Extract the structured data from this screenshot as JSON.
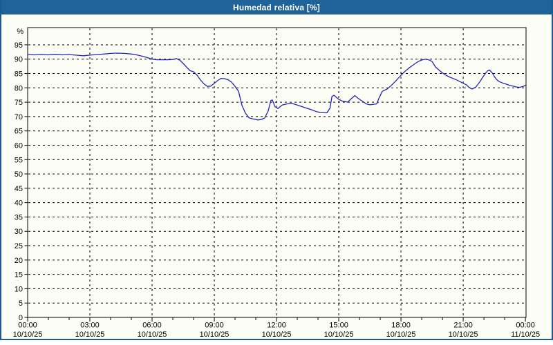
{
  "window": {
    "title": "Humedad relativa [%]"
  },
  "colors": {
    "titlebar_bg": "#1f6398",
    "frame_border": "#1a5c90",
    "panel_bg": "#fcfdf5",
    "plot_border": "#000000",
    "grid": "#000000",
    "series_line": "#2323b8",
    "title_text": "#ffffff",
    "axis_text": "#000000"
  },
  "chart_data": {
    "type": "line",
    "title": "Humedad relativa [%]",
    "ylabel": "%",
    "xlabel": "",
    "ylim": [
      0,
      101
    ],
    "xlim_hours": [
      0,
      24.03
    ],
    "grid": true,
    "legend_position": "none",
    "y_ticks": [
      0,
      5,
      10,
      15,
      20,
      25,
      30,
      35,
      40,
      45,
      50,
      55,
      60,
      65,
      70,
      75,
      80,
      85,
      90,
      95
    ],
    "x_ticks": [
      {
        "hour": 0,
        "time": "00:00",
        "date": "10/10/25"
      },
      {
        "hour": 3,
        "time": "03:00",
        "date": "10/10/25"
      },
      {
        "hour": 6,
        "time": "06:00",
        "date": "10/10/25"
      },
      {
        "hour": 9,
        "time": "09:00",
        "date": "10/10/25"
      },
      {
        "hour": 12,
        "time": "12:00",
        "date": "10/10/25"
      },
      {
        "hour": 15,
        "time": "15:00",
        "date": "10/10/25"
      },
      {
        "hour": 18,
        "time": "18:00",
        "date": "10/10/25"
      },
      {
        "hour": 21,
        "time": "21:00",
        "date": "10/10/25"
      },
      {
        "hour": 24,
        "time": "00:00",
        "date": "11/10/25"
      }
    ],
    "series": [
      {
        "name": "Humedad relativa [%]",
        "x_hours": [
          0,
          0.33,
          0.67,
          1,
          1.33,
          1.67,
          2,
          2.33,
          2.67,
          3,
          3.33,
          3.67,
          4,
          4.33,
          4.67,
          5,
          5.25,
          5.5,
          5.75,
          6,
          6.25,
          6.5,
          6.75,
          7,
          7.17,
          7.33,
          7.5,
          7.67,
          7.83,
          8,
          8.17,
          8.33,
          8.5,
          8.67,
          8.83,
          9,
          9.17,
          9.33,
          9.5,
          9.67,
          9.83,
          10,
          10.17,
          10.33,
          10.5,
          10.67,
          10.83,
          11,
          11.1,
          11.27,
          11.43,
          11.6,
          11.73,
          11.8,
          11.93,
          12.07,
          12.27,
          12.5,
          12.73,
          13,
          13.33,
          13.67,
          13.93,
          14.1,
          14.43,
          14.58,
          14.67,
          14.77,
          15,
          15.17,
          15.33,
          15.43,
          15.6,
          15.77,
          16,
          16.33,
          16.5,
          16.83,
          16.93,
          17.1,
          17.33,
          17.5,
          17.75,
          18,
          18.17,
          18.4,
          18.67,
          18.83,
          19,
          19.17,
          19.33,
          19.5,
          19.67,
          19.83,
          20,
          20.17,
          20.33,
          20.67,
          21,
          21.17,
          21.27,
          21.43,
          21.6,
          21.73,
          21.83,
          21.93,
          22.07,
          22.17,
          22.27,
          22.4,
          22.5,
          22.6,
          22.73,
          22.9,
          23.07,
          23.23,
          23.4,
          23.57,
          23.73,
          23.9,
          24
        ],
        "values": [
          91.6,
          91.5,
          91.6,
          91.5,
          91.7,
          91.5,
          91.6,
          91.4,
          91.2,
          91.4,
          91.6,
          91.8,
          92.0,
          92.1,
          92.0,
          91.8,
          91.5,
          91.1,
          90.6,
          90.0,
          89.8,
          89.8,
          89.8,
          89.9,
          90.2,
          89.7,
          88.5,
          87.2,
          86.0,
          85.6,
          84.4,
          82.8,
          81.4,
          80.5,
          80.6,
          81.6,
          82.6,
          83.3,
          83.2,
          82.8,
          82.0,
          80.5,
          78.8,
          74.0,
          71.2,
          69.6,
          69.2,
          69.0,
          68.8,
          69.0,
          69.5,
          72.0,
          75.6,
          75.8,
          73.4,
          72.8,
          74.0,
          74.4,
          74.6,
          74.0,
          73.2,
          72.4,
          71.7,
          71.4,
          71.3,
          73.0,
          77.0,
          77.4,
          76.0,
          75.4,
          75.2,
          75.0,
          76.2,
          77.3,
          76.0,
          74.4,
          74.1,
          74.4,
          76.3,
          78.8,
          79.6,
          80.6,
          82.4,
          84.4,
          85.6,
          87.0,
          88.4,
          89.2,
          89.7,
          90.0,
          89.8,
          89.2,
          87.2,
          86.2,
          85.2,
          84.4,
          83.8,
          82.8,
          81.6,
          81.0,
          80.2,
          79.6,
          80.2,
          81.4,
          82.4,
          83.6,
          85.0,
          85.9,
          86.2,
          85.2,
          84.0,
          83.0,
          82.2,
          81.7,
          81.3,
          80.9,
          80.6,
          80.3,
          80.2,
          80.5,
          80.9
        ]
      }
    ]
  }
}
